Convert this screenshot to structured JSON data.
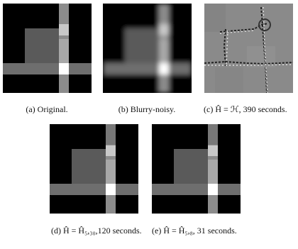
{
  "figures": [
    {
      "caption": "(a) Original."
    },
    {
      "caption": "(b) Blurry-noisy."
    },
    {
      "caption": "(c) Ĥ = ℋ, 390 seconds."
    },
    {
      "caption": "(d) Ĥ = Ĥ₅,₃₀,120 seconds."
    },
    {
      "caption": "(e) Ĥ = Ĥ₅,₈, 31 seconds."
    }
  ]
}
